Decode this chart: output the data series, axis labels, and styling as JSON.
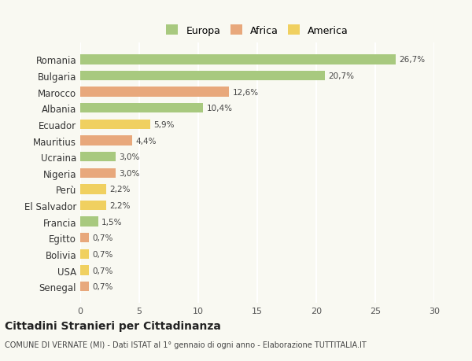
{
  "categories": [
    "Romania",
    "Bulgaria",
    "Marocco",
    "Albania",
    "Ecuador",
    "Mauritius",
    "Ucraina",
    "Nigeria",
    "Perù",
    "El Salvador",
    "Francia",
    "Egitto",
    "Bolivia",
    "USA",
    "Senegal"
  ],
  "values": [
    26.7,
    20.7,
    12.6,
    10.4,
    5.9,
    4.4,
    3.0,
    3.0,
    2.2,
    2.2,
    1.5,
    0.7,
    0.7,
    0.7,
    0.7
  ],
  "labels": [
    "26,7%",
    "20,7%",
    "12,6%",
    "10,4%",
    "5,9%",
    "4,4%",
    "3,0%",
    "3,0%",
    "2,2%",
    "2,2%",
    "1,5%",
    "0,7%",
    "0,7%",
    "0,7%",
    "0,7%"
  ],
  "continents": [
    "Europa",
    "Europa",
    "Africa",
    "Europa",
    "America",
    "Africa",
    "Europa",
    "Africa",
    "America",
    "America",
    "Europa",
    "Africa",
    "America",
    "America",
    "Africa"
  ],
  "colors": {
    "Europa": "#a8c97f",
    "Africa": "#e8a87c",
    "America": "#f0d060"
  },
  "legend_colors": {
    "Europa": "#a8c97f",
    "Africa": "#e8a87c",
    "America": "#f0d060"
  },
  "xlim": [
    0,
    30
  ],
  "xticks": [
    0,
    5,
    10,
    15,
    20,
    25,
    30
  ],
  "title": "Cittadini Stranieri per Cittadinanza",
  "subtitle": "COMUNE DI VERNATE (MI) - Dati ISTAT al 1° gennaio di ogni anno - Elaborazione TUTTITALIA.IT",
  "background_color": "#f9f9f2",
  "grid_color": "#ffffff",
  "bar_height": 0.6
}
